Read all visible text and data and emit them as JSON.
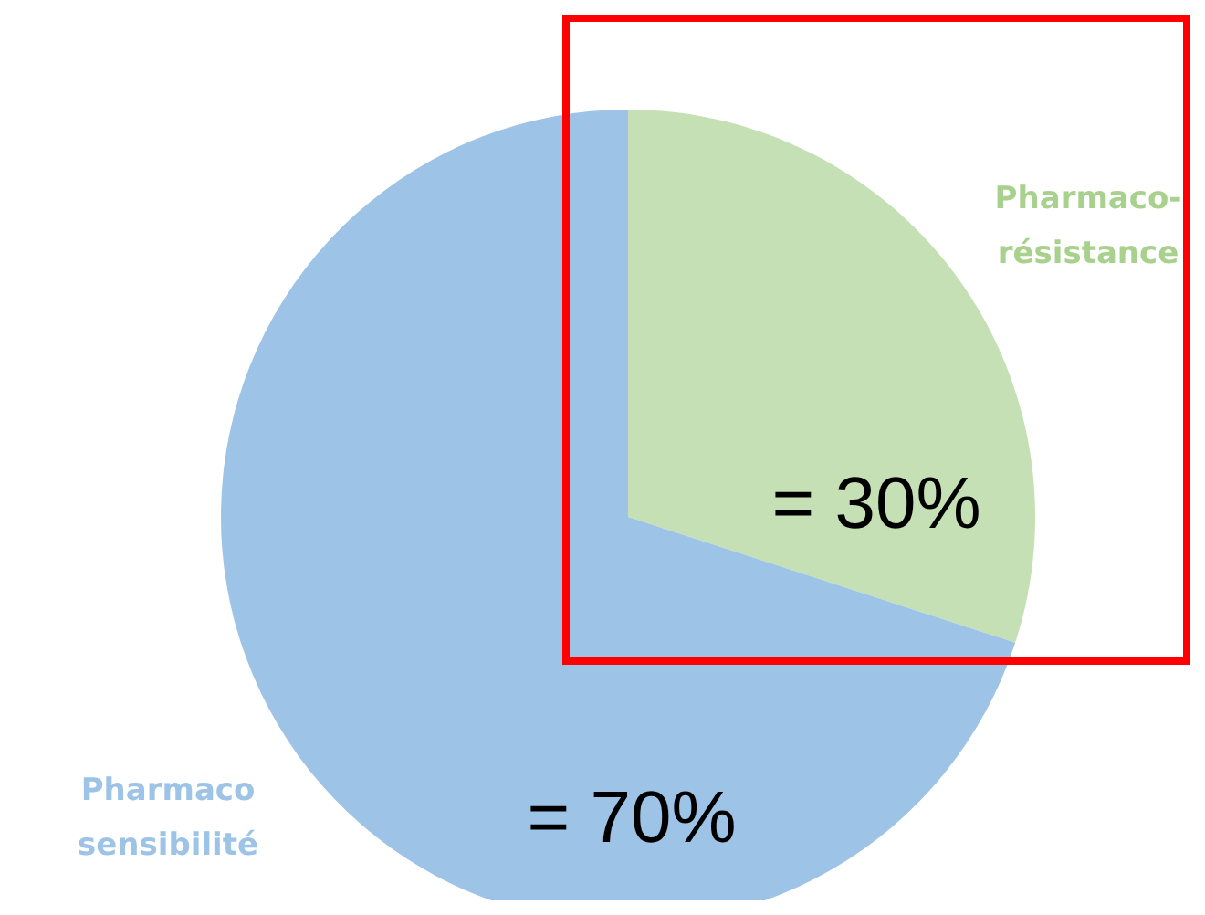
{
  "chart_data": {
    "type": "pie",
    "categories": [
      "Pharmaco-résistance",
      "Pharmaco sensibilité"
    ],
    "values": [
      30,
      70
    ],
    "colors": [
      "#c5e0b4",
      "#9dc3e6"
    ],
    "value_labels": [
      "= 30%",
      "= 70%"
    ],
    "legend": false
  }
}
